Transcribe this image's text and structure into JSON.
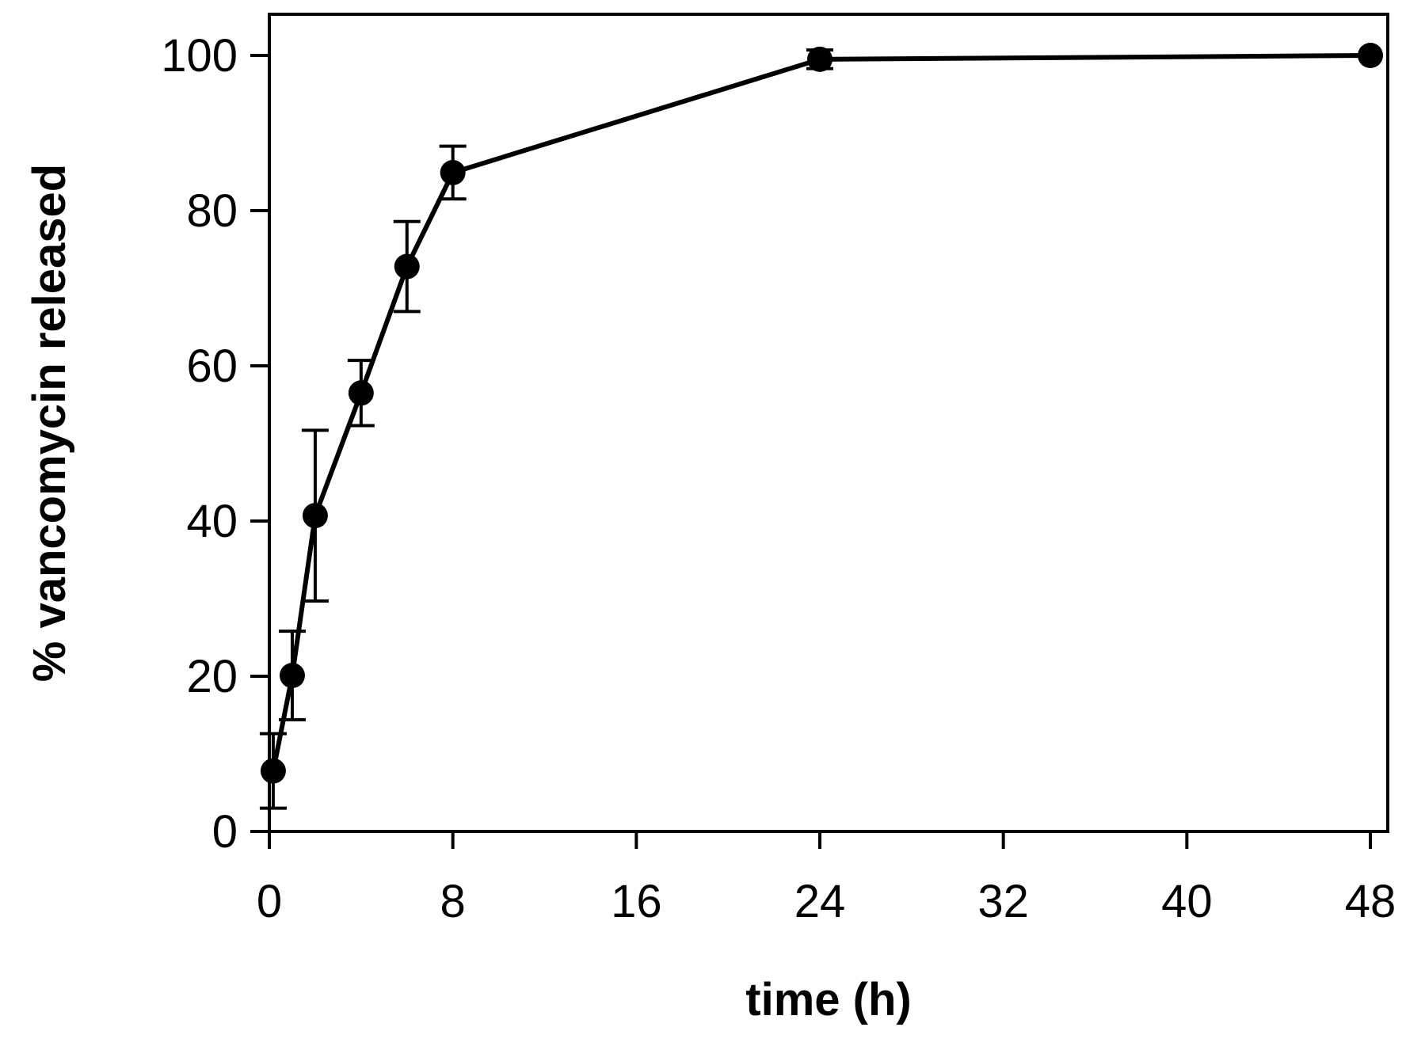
{
  "chart_data": {
    "type": "line",
    "title": "",
    "xlabel": "time (h)",
    "ylabel": "% vancomycin released",
    "xlim": [
      0,
      48
    ],
    "ylim": [
      0,
      100
    ],
    "xticks": [
      0,
      8,
      16,
      24,
      32,
      40,
      48
    ],
    "yticks": [
      0,
      20,
      40,
      60,
      80,
      100
    ],
    "grid": false,
    "legend": "none",
    "colors": {
      "line": "#000000",
      "marker": "#000000",
      "axis": "#000000"
    },
    "series": [
      {
        "x": [
          0.17,
          1,
          2,
          4,
          6,
          8,
          24,
          48
        ],
        "y": [
          7.8,
          20.1,
          40.7,
          56.5,
          72.8,
          84.9,
          99.5,
          100
        ],
        "error": [
          4.8,
          5.7,
          11.0,
          4.2,
          5.8,
          3.4,
          1.2,
          0
        ],
        "marker": "filled-circle",
        "error_bars": true
      }
    ]
  }
}
